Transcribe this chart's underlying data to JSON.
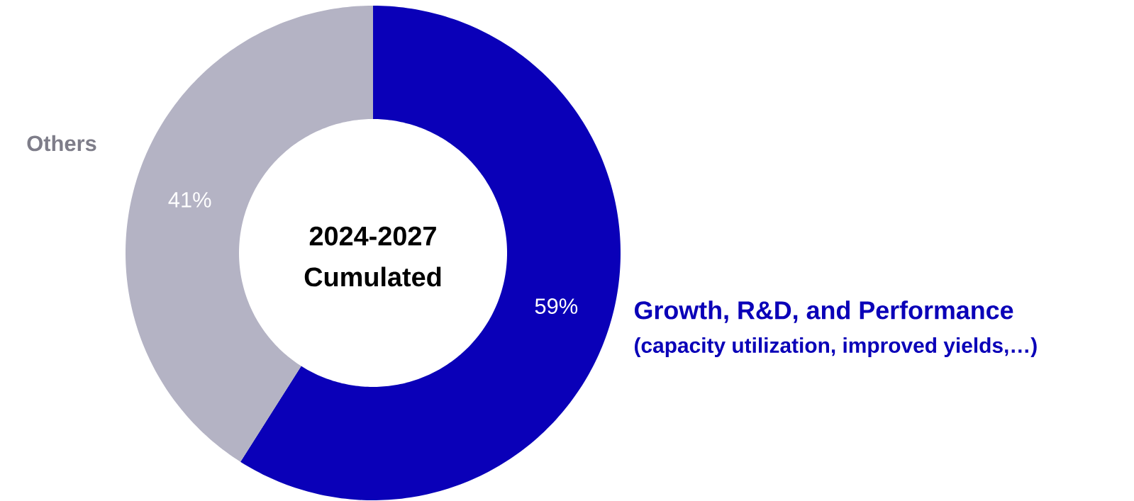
{
  "chart_data": {
    "type": "donut",
    "title": "2024-2027 Cumulated",
    "categories": [
      "Growth, R&D, and Performance",
      "Others"
    ],
    "values": [
      59,
      41
    ],
    "value_labels": [
      "59%",
      "41%"
    ],
    "annotations": [
      "(capacity utilization, improved yields,…)"
    ],
    "colors": [
      "#0a00b8",
      "#b4b3c4"
    ]
  }
}
